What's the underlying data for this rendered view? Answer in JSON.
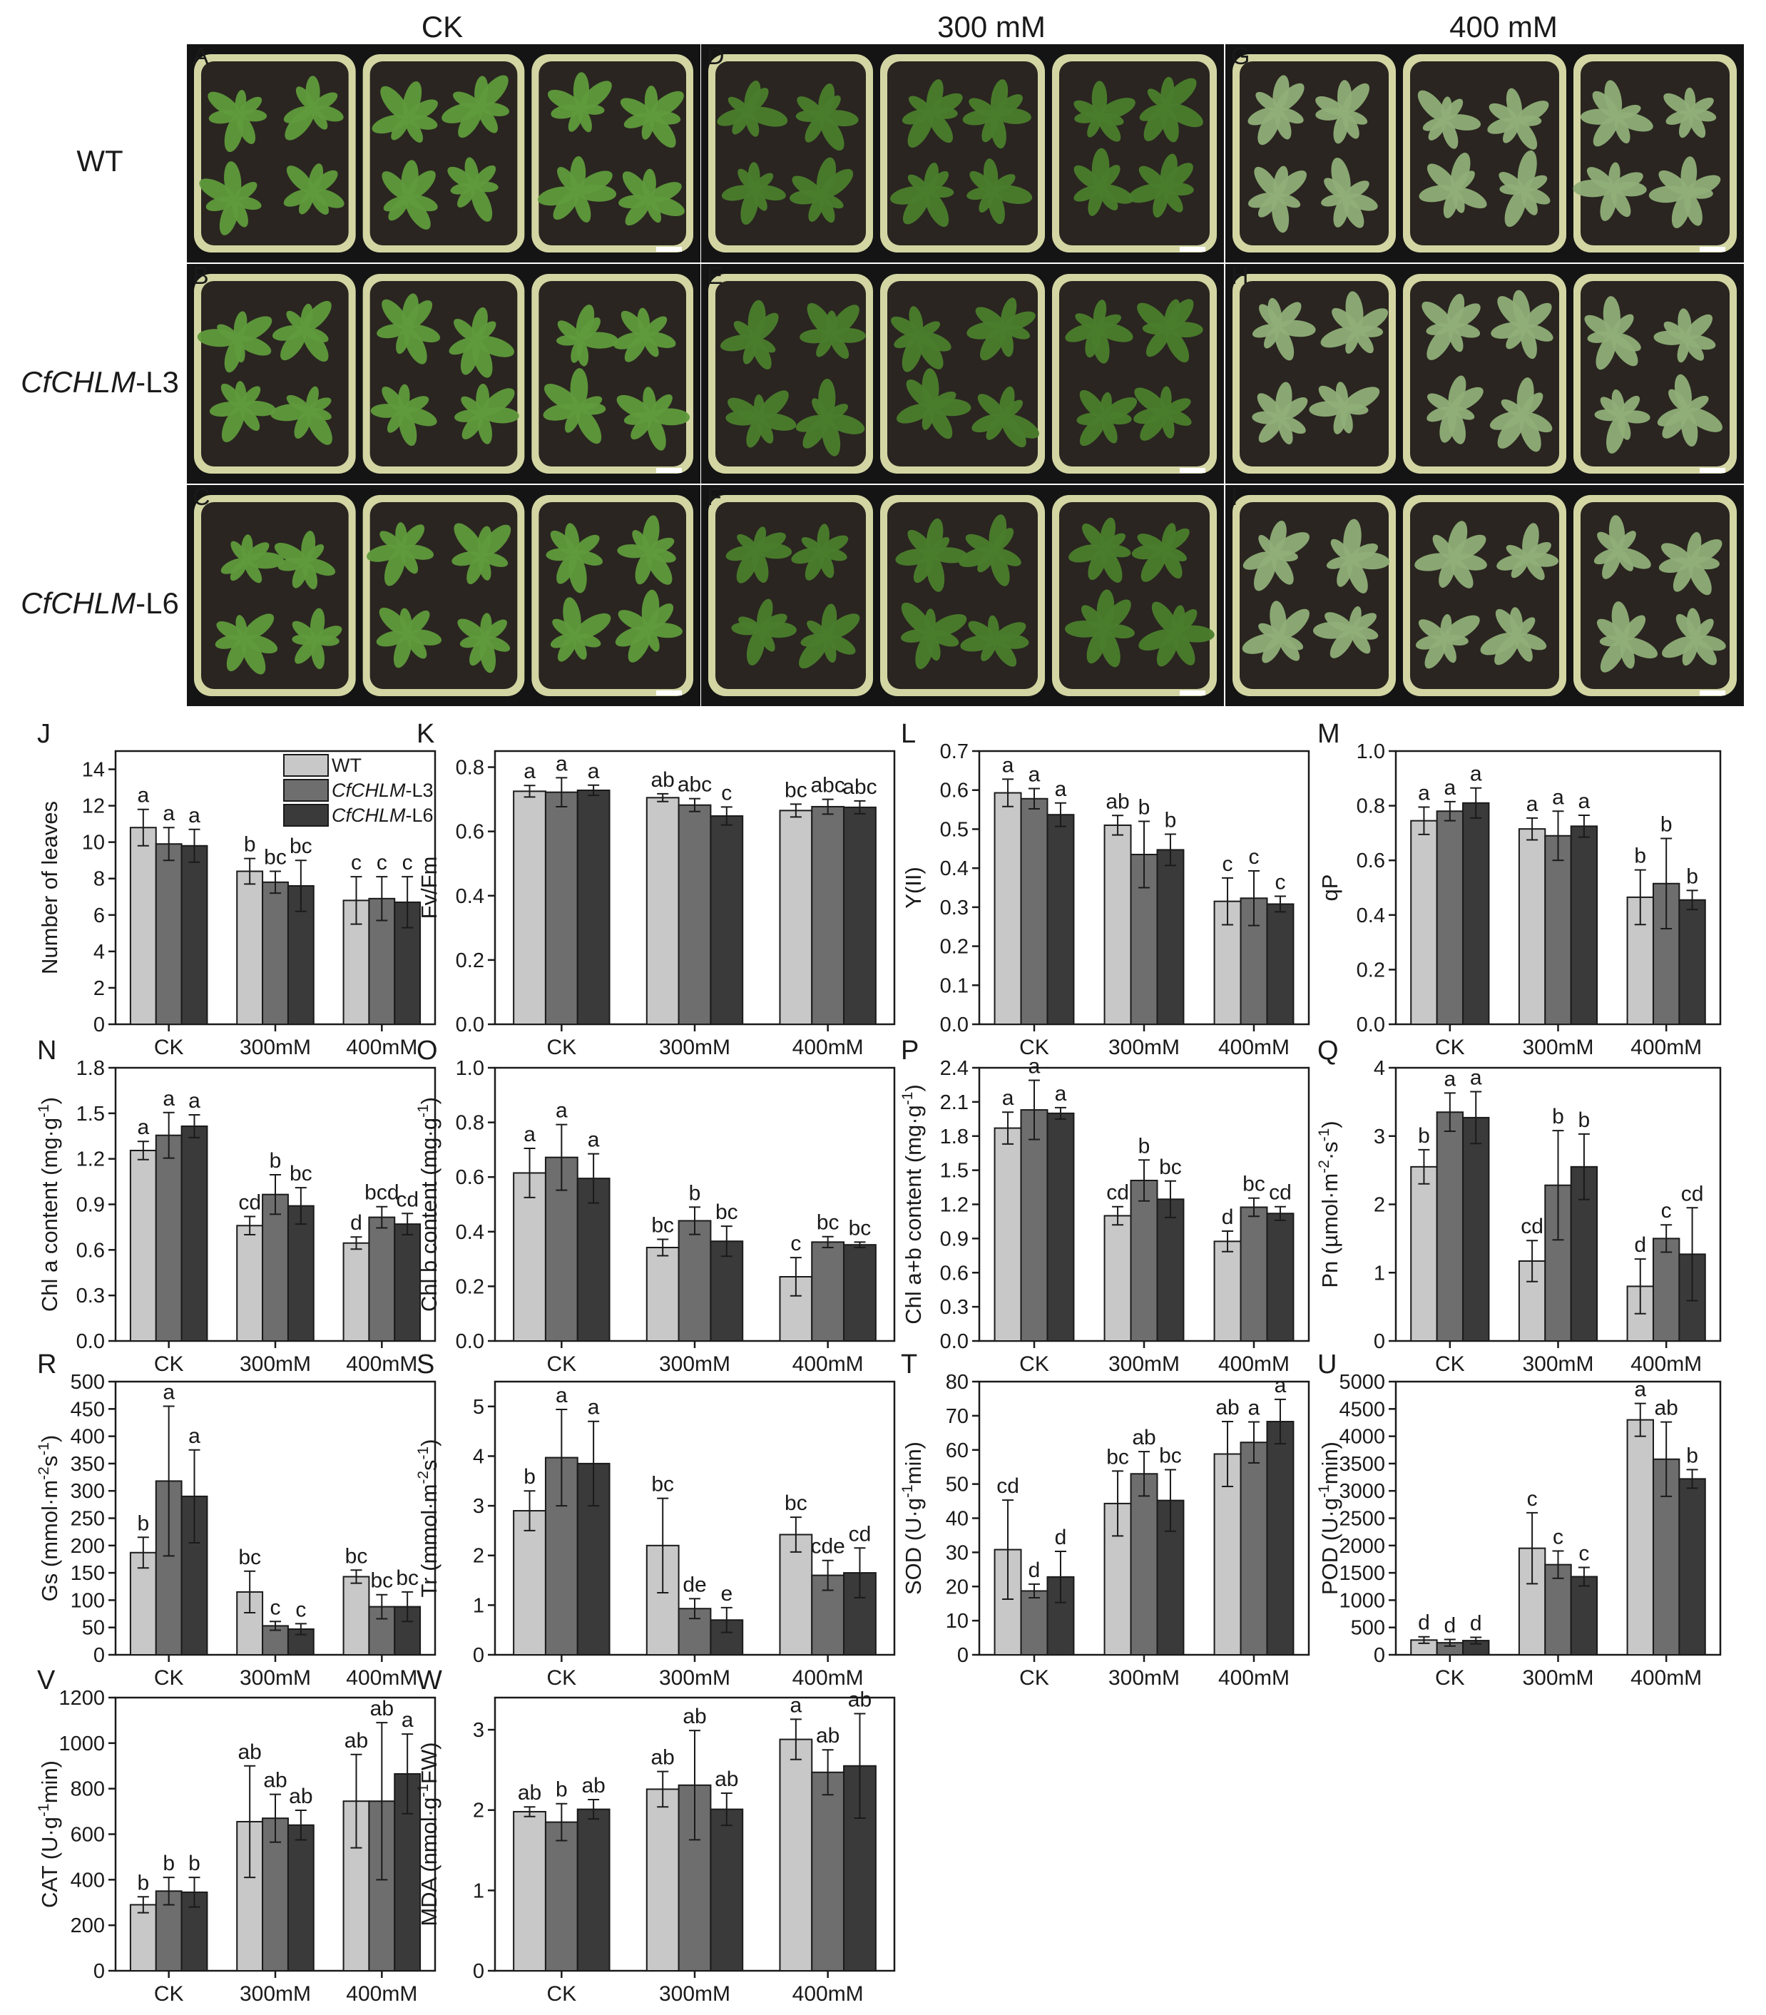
{
  "photo_panel": {
    "column_titles": [
      "CK",
      "300 mM",
      "400 mM"
    ],
    "row_titles": [
      {
        "italic": "",
        "plain": "WT"
      },
      {
        "italic": "CfCHLM",
        "plain": "-L3"
      },
      {
        "italic": "CfCHLM",
        "plain": "-L6"
      }
    ],
    "panel_letters": [
      "A",
      "D",
      "G",
      "B",
      "E",
      "H",
      "C",
      "F",
      "I"
    ],
    "colors": {
      "background": "#141414",
      "pot": "#d3d6a3",
      "soil": "#2a2520",
      "leaf": "#5f9a3c",
      "leaf_dark": "#4a7d2c",
      "leaf_pale": "#8fae78",
      "scale_bar": "#ffffff"
    }
  },
  "legend": {
    "entries": [
      {
        "italic": "",
        "plain": "WT"
      },
      {
        "italic": "CfCHLM",
        "plain": "-L3"
      },
      {
        "italic": "CfCHLM",
        "plain": "-L6"
      }
    ],
    "placement": "top-right of panel J"
  },
  "series_colors": [
    "#c8c8c8",
    "#6e6e6e",
    "#3a3a3a"
  ],
  "chart_data": [
    {
      "letter": "J",
      "type": "bar",
      "ylabel_parts": [
        "Number of leaves"
      ],
      "ylim": [
        0,
        15
      ],
      "yticks": [
        "0",
        "2",
        "4",
        "6",
        "8",
        "10",
        "12",
        "14"
      ],
      "categories": [
        "CK",
        "300mM",
        "400mM"
      ],
      "values": [
        [
          10.8,
          9.9,
          9.8
        ],
        [
          8.4,
          7.8,
          7.6
        ],
        [
          6.8,
          6.9,
          6.7
        ]
      ],
      "errors": [
        [
          1.0,
          0.9,
          0.9
        ],
        [
          0.7,
          0.6,
          1.4
        ],
        [
          1.3,
          1.2,
          1.4
        ]
      ],
      "labels": [
        [
          "a",
          "a",
          "a"
        ],
        [
          "b",
          "bc",
          "bc"
        ],
        [
          "c",
          "c",
          "c"
        ]
      ]
    },
    {
      "letter": "K",
      "type": "bar",
      "ylabel_parts": [
        "Fv/Fm"
      ],
      "ylim": [
        0,
        0.85
      ],
      "yticks": [
        "0.0",
        "0.2",
        "0.4",
        "0.6",
        "0.8"
      ],
      "categories": [
        "CK",
        "300mM",
        "400mM"
      ],
      "values": [
        [
          0.725,
          0.722,
          0.728
        ],
        [
          0.705,
          0.682,
          0.648
        ],
        [
          0.665,
          0.677,
          0.675
        ]
      ],
      "errors": [
        [
          0.018,
          0.045,
          0.016
        ],
        [
          0.012,
          0.02,
          0.028
        ],
        [
          0.02,
          0.023,
          0.02
        ]
      ],
      "labels": [
        [
          "a",
          "a",
          "a"
        ],
        [
          "ab",
          "abc",
          "c"
        ],
        [
          "bc",
          "abc",
          "abc"
        ]
      ]
    },
    {
      "letter": "L",
      "type": "bar",
      "ylabel_parts": [
        "Y(II)"
      ],
      "ylim": [
        0,
        0.7
      ],
      "yticks": [
        "0.0",
        "0.1",
        "0.2",
        "0.3",
        "0.4",
        "0.5",
        "0.6",
        "0.7"
      ],
      "categories": [
        "CK",
        "300mM",
        "400mM"
      ],
      "values": [
        [
          0.593,
          0.578,
          0.537
        ],
        [
          0.51,
          0.435,
          0.447
        ],
        [
          0.315,
          0.323,
          0.308
        ]
      ],
      "errors": [
        [
          0.035,
          0.026,
          0.03
        ],
        [
          0.025,
          0.085,
          0.04
        ],
        [
          0.06,
          0.07,
          0.02
        ]
      ],
      "labels": [
        [
          "a",
          "a",
          "a"
        ],
        [
          "ab",
          "b",
          "b"
        ],
        [
          "c",
          "c",
          "c"
        ]
      ]
    },
    {
      "letter": "M",
      "type": "bar",
      "ylabel_parts": [
        "qP"
      ],
      "ylim": [
        0,
        1.0
      ],
      "yticks": [
        "0.0",
        "0.2",
        "0.4",
        "0.6",
        "0.8",
        "1.0"
      ],
      "categories": [
        "CK",
        "300mM",
        "400mM"
      ],
      "values": [
        [
          0.745,
          0.78,
          0.81
        ],
        [
          0.715,
          0.69,
          0.725
        ],
        [
          0.465,
          0.515,
          0.455
        ]
      ],
      "errors": [
        [
          0.05,
          0.035,
          0.055
        ],
        [
          0.04,
          0.09,
          0.04
        ],
        [
          0.1,
          0.165,
          0.035
        ]
      ],
      "labels": [
        [
          "a",
          "a",
          "a"
        ],
        [
          "a",
          "a",
          "a"
        ],
        [
          "b",
          "b",
          "b"
        ]
      ]
    },
    {
      "letter": "N",
      "type": "bar",
      "ylabel_parts": [
        "Chl a content (mg·g",
        "-1",
        ")"
      ],
      "ylim": [
        0,
        1.8
      ],
      "yticks": [
        "0.0",
        "0.3",
        "0.6",
        "0.9",
        "1.2",
        "1.5",
        "1.8"
      ],
      "categories": [
        "CK",
        "300mM",
        "400mM"
      ],
      "values": [
        [
          1.255,
          1.355,
          1.415
        ],
        [
          0.76,
          0.965,
          0.89
        ],
        [
          0.645,
          0.815,
          0.77
        ]
      ],
      "errors": [
        [
          0.06,
          0.15,
          0.075
        ],
        [
          0.06,
          0.13,
          0.12
        ],
        [
          0.04,
          0.07,
          0.07
        ]
      ],
      "labels": [
        [
          "a",
          "a",
          "a"
        ],
        [
          "cd",
          "b",
          "bc"
        ],
        [
          "d",
          "bcd",
          "cd"
        ]
      ]
    },
    {
      "letter": "O",
      "type": "bar",
      "ylabel_parts": [
        "Chl b content (mg·g",
        "-1",
        ")"
      ],
      "ylim": [
        0,
        1.0
      ],
      "yticks": [
        "0.0",
        "0.2",
        "0.4",
        "0.6",
        "0.8",
        "1.0"
      ],
      "categories": [
        "CK",
        "300mM",
        "400mM"
      ],
      "values": [
        [
          0.615,
          0.672,
          0.595
        ],
        [
          0.342,
          0.44,
          0.365
        ],
        [
          0.235,
          0.362,
          0.352
        ]
      ],
      "errors": [
        [
          0.09,
          0.12,
          0.09
        ],
        [
          0.03,
          0.05,
          0.055
        ],
        [
          0.07,
          0.02,
          0.01
        ]
      ],
      "labels": [
        [
          "a",
          "a",
          "a"
        ],
        [
          "bc",
          "b",
          "bc"
        ],
        [
          "c",
          "bc",
          "bc"
        ]
      ]
    },
    {
      "letter": "P",
      "type": "bar",
      "ylabel_parts": [
        "Chl a+b content (mg·g",
        "-1",
        ")"
      ],
      "ylim": [
        0,
        2.4
      ],
      "yticks": [
        "0.0",
        "0.3",
        "0.6",
        "0.9",
        "1.2",
        "1.5",
        "1.8",
        "2.1",
        "2.4"
      ],
      "categories": [
        "CK",
        "300mM",
        "400mM"
      ],
      "values": [
        [
          1.87,
          2.03,
          2.0
        ],
        [
          1.1,
          1.41,
          1.245
        ],
        [
          0.875,
          1.175,
          1.12
        ]
      ],
      "errors": [
        [
          0.14,
          0.26,
          0.05
        ],
        [
          0.08,
          0.18,
          0.16
        ],
        [
          0.09,
          0.08,
          0.06
        ]
      ],
      "labels": [
        [
          "a",
          "a",
          "a"
        ],
        [
          "cd",
          "b",
          "bc"
        ],
        [
          "d",
          "bc",
          "cd"
        ]
      ]
    },
    {
      "letter": "Q",
      "type": "bar",
      "ylabel_parts": [
        "Pn (µmol·m",
        "-2",
        "·s",
        "-1",
        ")"
      ],
      "ylim": [
        0,
        4
      ],
      "yticks": [
        "0",
        "1",
        "2",
        "3",
        "4"
      ],
      "categories": [
        "CK",
        "300mM",
        "400mM"
      ],
      "values": [
        [
          2.55,
          3.35,
          3.27
        ],
        [
          1.17,
          2.28,
          2.55
        ],
        [
          0.8,
          1.5,
          1.27
        ]
      ],
      "errors": [
        [
          0.25,
          0.28,
          0.38
        ],
        [
          0.3,
          0.8,
          0.48
        ],
        [
          0.4,
          0.2,
          0.68
        ]
      ],
      "labels": [
        [
          "b",
          "a",
          "a"
        ],
        [
          "cd",
          "b",
          "b"
        ],
        [
          "d",
          "c",
          "cd"
        ]
      ]
    },
    {
      "letter": "R",
      "type": "bar",
      "ylabel_parts": [
        "Gs (mmol·m",
        "-2",
        "s",
        "-1",
        ")"
      ],
      "ylim": [
        0,
        500
      ],
      "yticks": [
        "0",
        "50",
        "100",
        "150",
        "200",
        "250",
        "300",
        "350",
        "400",
        "450",
        "500"
      ],
      "categories": [
        "CK",
        "300mM",
        "400mM"
      ],
      "values": [
        [
          187,
          318,
          290
        ],
        [
          115,
          53,
          47
        ],
        [
          143,
          88,
          88
        ]
      ],
      "errors": [
        [
          28,
          137,
          85
        ],
        [
          38,
          8,
          10
        ],
        [
          12,
          22,
          27
        ]
      ],
      "labels": [
        [
          "b",
          "a",
          "a"
        ],
        [
          "bc",
          "c",
          "c"
        ],
        [
          "bc",
          "bc",
          "bc"
        ]
      ]
    },
    {
      "letter": "S",
      "type": "bar",
      "ylabel_parts": [
        "Tr (mmol·m",
        "-2",
        "s",
        "-1",
        ")"
      ],
      "ylim": [
        0,
        5.5
      ],
      "yticks": [
        "0",
        "1",
        "2",
        "3",
        "4",
        "5"
      ],
      "categories": [
        "CK",
        "300mM",
        "400mM"
      ],
      "values": [
        [
          2.9,
          3.97,
          3.85
        ],
        [
          2.2,
          0.93,
          0.7
        ],
        [
          2.42,
          1.6,
          1.65
        ]
      ],
      "errors": [
        [
          0.4,
          0.97,
          0.85
        ],
        [
          0.95,
          0.2,
          0.25
        ],
        [
          0.35,
          0.3,
          0.5
        ]
      ],
      "labels": [
        [
          "b",
          "a",
          "a"
        ],
        [
          "bc",
          "de",
          "e"
        ],
        [
          "bc",
          "cde",
          "cd"
        ]
      ]
    },
    {
      "letter": "T",
      "type": "bar",
      "ylabel_parts": [
        "SOD (U·g",
        "-1",
        "min)"
      ],
      "ylim": [
        0,
        80
      ],
      "yticks": [
        "0",
        "10",
        "20",
        "30",
        "40",
        "50",
        "60",
        "70",
        "80"
      ],
      "categories": [
        "CK",
        "300mM",
        "400mM"
      ],
      "values": [
        [
          30.8,
          18.7,
          22.8
        ],
        [
          44.3,
          53.0,
          45.2
        ],
        [
          58.8,
          62.2,
          68.3
        ]
      ],
      "errors": [
        [
          14.5,
          2.0,
          7.5
        ],
        [
          9.5,
          6.5,
          9.0
        ],
        [
          9.5,
          6.0,
          6.5
        ]
      ],
      "labels": [
        [
          "cd",
          "d",
          "d"
        ],
        [
          "bc",
          "ab",
          "bc"
        ],
        [
          "ab",
          "a",
          "a"
        ]
      ]
    },
    {
      "letter": "U",
      "type": "bar",
      "ylabel_parts": [
        "POD (U·g",
        "-1",
        "min)"
      ],
      "ylim": [
        0,
        5000
      ],
      "yticks": [
        "0",
        "500",
        "1000",
        "1500",
        "2000",
        "2500",
        "3000",
        "3500",
        "4000",
        "4500",
        "5000"
      ],
      "categories": [
        "CK",
        "300mM",
        "400mM"
      ],
      "values": [
        [
          270,
          220,
          260
        ],
        [
          1950,
          1650,
          1430
        ],
        [
          4300,
          3580,
          3220
        ]
      ],
      "errors": [
        [
          60,
          60,
          60
        ],
        [
          650,
          250,
          170
        ],
        [
          300,
          680,
          170
        ]
      ],
      "labels": [
        [
          "d",
          "d",
          "d"
        ],
        [
          "c",
          "c",
          "c"
        ],
        [
          "a",
          "ab",
          "b"
        ]
      ]
    },
    {
      "letter": "V",
      "type": "bar",
      "ylabel_parts": [
        "CAT (U·g",
        "-1",
        "min)"
      ],
      "ylim": [
        0,
        1200
      ],
      "yticks": [
        "0",
        "200",
        "400",
        "600",
        "800",
        "1000",
        "1200"
      ],
      "categories": [
        "CK",
        "300mM",
        "400mM"
      ],
      "values": [
        [
          290,
          350,
          345
        ],
        [
          655,
          670,
          640
        ],
        [
          745,
          745,
          865
        ]
      ],
      "errors": [
        [
          35,
          60,
          65
        ],
        [
          245,
          105,
          65
        ],
        [
          205,
          345,
          175
        ]
      ],
      "labels": [
        [
          "b",
          "b",
          "b"
        ],
        [
          "ab",
          "ab",
          "ab"
        ],
        [
          "ab",
          "ab",
          "a"
        ]
      ]
    },
    {
      "letter": "W",
      "type": "bar",
      "ylabel_parts": [
        "MDA (nmol·g",
        "-1",
        "FW)"
      ],
      "ylim": [
        0,
        3.4
      ],
      "yticks": [
        "0",
        "1",
        "2",
        "3"
      ],
      "categories": [
        "CK",
        "300mM",
        "400mM"
      ],
      "values": [
        [
          1.98,
          1.85,
          2.01
        ],
        [
          2.26,
          2.31,
          2.01
        ],
        [
          2.88,
          2.47,
          2.55
        ]
      ],
      "errors": [
        [
          0.06,
          0.23,
          0.12
        ],
        [
          0.22,
          0.68,
          0.2
        ],
        [
          0.25,
          0.28,
          0.65
        ]
      ],
      "labels": [
        [
          "ab",
          "b",
          "ab"
        ],
        [
          "ab",
          "ab",
          "ab"
        ],
        [
          "a",
          "ab",
          "ab"
        ]
      ]
    }
  ]
}
